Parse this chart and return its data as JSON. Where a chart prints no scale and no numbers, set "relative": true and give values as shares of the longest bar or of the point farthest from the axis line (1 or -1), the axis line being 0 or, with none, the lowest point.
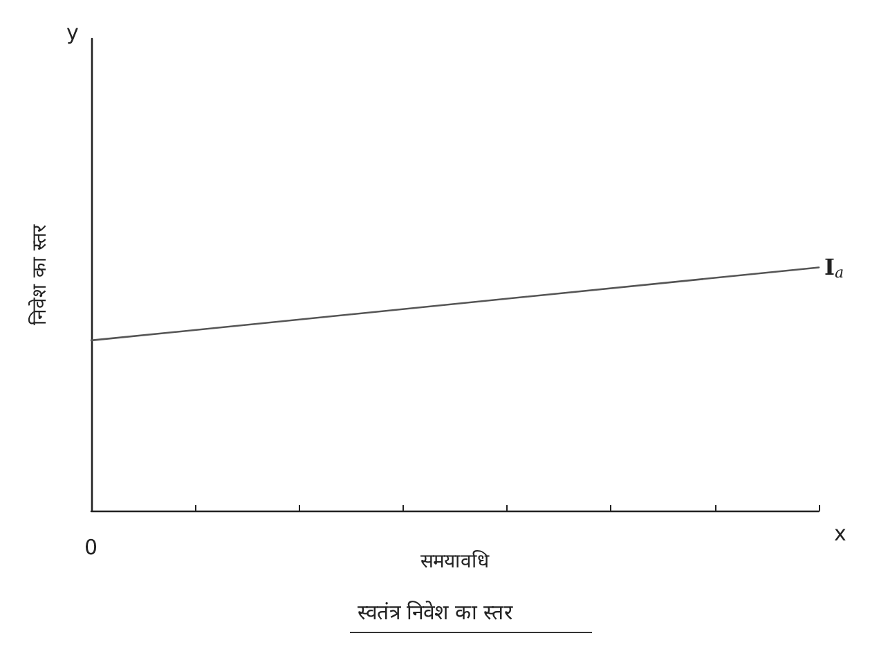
{
  "chart_data": {
    "type": "line",
    "title": "स्वतंत्र निवेश का स्तर",
    "xlabel": "समयावधि",
    "ylabel": "निवेश का स्तर",
    "relative": true,
    "categories": [
      null,
      null,
      null,
      null,
      null,
      null,
      null,
      null
    ],
    "series": [
      {
        "name": "I$_{a}$",
        "color": "#555555",
        "values": [
          0.7,
          null,
          null,
          null,
          null,
          null,
          null,
          1
        ]
      }
    ],
    "annotations": [
      "y",
      "x",
      "0"
    ],
    "grid": false,
    "legend": false,
    "marker": "none",
    "line_style": "solid"
  }
}
